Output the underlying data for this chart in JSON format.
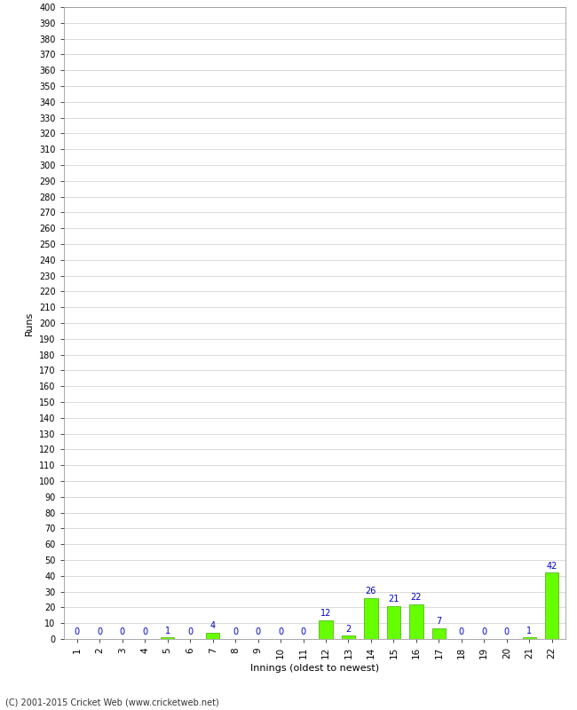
{
  "xlabel": "Innings (oldest to newest)",
  "ylabel": "Runs",
  "categories": [
    "1",
    "2",
    "3",
    "4",
    "5",
    "6",
    "7",
    "8",
    "9",
    "10",
    "11",
    "12",
    "13",
    "14",
    "15",
    "16",
    "17",
    "18",
    "19",
    "20",
    "21",
    "22"
  ],
  "values": [
    0,
    0,
    0,
    0,
    1,
    0,
    4,
    0,
    0,
    0,
    0,
    12,
    2,
    26,
    21,
    22,
    7,
    0,
    0,
    0,
    1,
    42
  ],
  "bar_color": "#66ff00",
  "bar_edge_color": "#44aa00",
  "label_color": "#0000cc",
  "ylim": [
    0,
    400
  ],
  "background_color": "#ffffff",
  "grid_color": "#cccccc",
  "footer": "(C) 2001-2015 Cricket Web (www.cricketweb.net)"
}
